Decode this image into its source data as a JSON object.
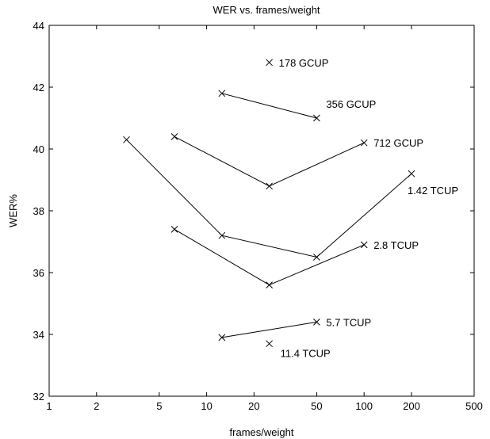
{
  "chart_data": {
    "type": "line",
    "title": "WER vs. frames/weight",
    "xlabel": "frames/weight",
    "ylabel": "WER%",
    "xscale": "log",
    "xlim": [
      1,
      500
    ],
    "ylim": [
      32,
      44
    ],
    "xticks": [
      1,
      2,
      5,
      10,
      20,
      50,
      100,
      200,
      500
    ],
    "xtick_labels": [
      "1",
      "2",
      "5",
      "10",
      "20",
      "50",
      "100",
      "200",
      "500"
    ],
    "yticks": [
      32,
      34,
      36,
      38,
      40,
      42,
      44
    ],
    "ytick_labels": [
      "32",
      "34",
      "36",
      "38",
      "40",
      "42",
      "44"
    ],
    "grid": false,
    "marker": "x",
    "series": [
      {
        "name": "178 GCUP",
        "x": [
          25
        ],
        "y": [
          42.8
        ]
      },
      {
        "name": "356 GCUP",
        "x": [
          12.5,
          50
        ],
        "y": [
          41.8,
          41.0
        ]
      },
      {
        "name": "712 GCUP",
        "x": [
          6.25,
          25,
          100
        ],
        "y": [
          40.4,
          38.8,
          40.2
        ]
      },
      {
        "name": "1.42 TCUP",
        "x": [
          3.1,
          12.5,
          50,
          200
        ],
        "y": [
          40.3,
          37.2,
          36.5,
          39.2
        ]
      },
      {
        "name": "2.8 TCUP",
        "x": [
          6.25,
          25,
          100
        ],
        "y": [
          37.4,
          35.6,
          36.9
        ]
      },
      {
        "name": "5.7 TCUP",
        "x": [
          12.5,
          50
        ],
        "y": [
          33.9,
          34.4
        ]
      },
      {
        "name": "11.4 TCUP",
        "x": [
          25
        ],
        "y": [
          33.7
        ]
      }
    ]
  }
}
